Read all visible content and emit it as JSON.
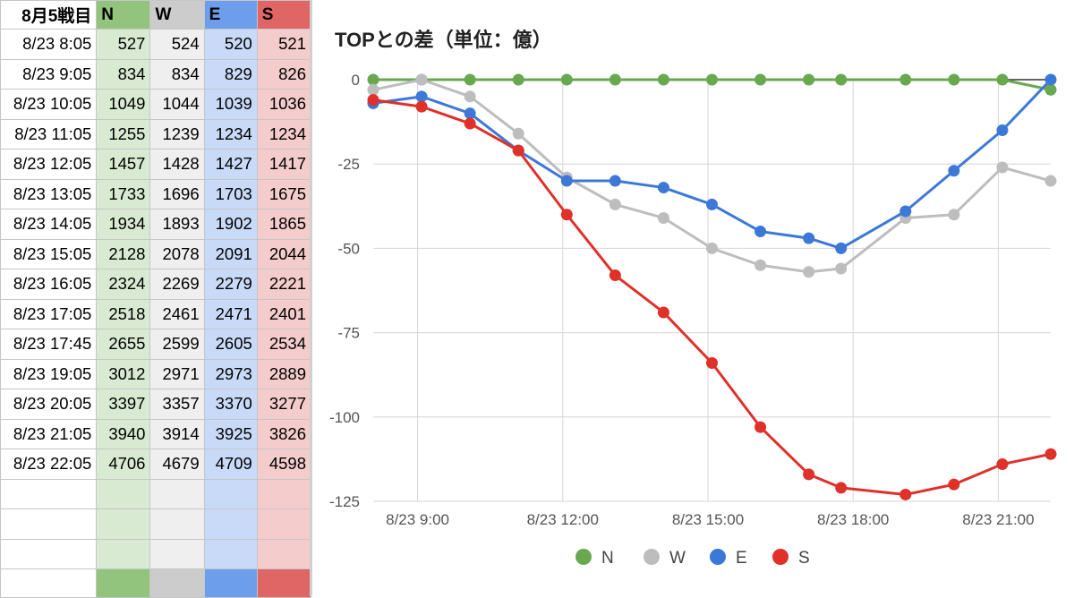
{
  "sheet": {
    "header": [
      "8月5戦目",
      "N",
      "W",
      "E",
      "S"
    ],
    "rows": [
      [
        "8/23 8:05",
        "527",
        "524",
        "520",
        "521"
      ],
      [
        "8/23 9:05",
        "834",
        "834",
        "829",
        "826"
      ],
      [
        "8/23 10:05",
        "1049",
        "1044",
        "1039",
        "1036"
      ],
      [
        "8/23 11:05",
        "1255",
        "1239",
        "1234",
        "1234"
      ],
      [
        "8/23 12:05",
        "1457",
        "1428",
        "1427",
        "1417"
      ],
      [
        "8/23 13:05",
        "1733",
        "1696",
        "1703",
        "1675"
      ],
      [
        "8/23 14:05",
        "1934",
        "1893",
        "1902",
        "1865"
      ],
      [
        "8/23 15:05",
        "2128",
        "2078",
        "2091",
        "2044"
      ],
      [
        "8/23 16:05",
        "2324",
        "2269",
        "2279",
        "2221"
      ],
      [
        "8/23 17:05",
        "2518",
        "2461",
        "2471",
        "2401"
      ],
      [
        "8/23 17:45",
        "2655",
        "2599",
        "2605",
        "2534"
      ],
      [
        "8/23 19:05",
        "3012",
        "2971",
        "2973",
        "2889"
      ],
      [
        "8/23 20:05",
        "3397",
        "3357",
        "3370",
        "3277"
      ],
      [
        "8/23 21:05",
        "3940",
        "3914",
        "3925",
        "3826"
      ],
      [
        "8/23 22:05",
        "4706",
        "4679",
        "4709",
        "4598"
      ]
    ]
  },
  "chart_data": {
    "type": "line",
    "title": "TOPとの差（単位：億）",
    "x": [
      "8/23 8:05",
      "8/23 9:05",
      "8/23 10:05",
      "8/23 11:05",
      "8/23 12:05",
      "8/23 13:05",
      "8/23 14:05",
      "8/23 15:05",
      "8/23 16:05",
      "8/23 17:05",
      "8/23 17:45",
      "8/23 19:05",
      "8/23 20:05",
      "8/23 21:05",
      "8/23 22:05"
    ],
    "series": [
      {
        "name": "N",
        "color": "#6aa84f",
        "values": [
          0,
          0,
          0,
          0,
          0,
          0,
          0,
          0,
          0,
          0,
          0,
          0,
          0,
          0,
          -3
        ]
      },
      {
        "name": "W",
        "color": "#bdbdbd",
        "values": [
          -3,
          0,
          -5,
          -16,
          -29,
          -37,
          -41,
          -50,
          -55,
          -57,
          -56,
          -41,
          -40,
          -26,
          -30
        ]
      },
      {
        "name": "E",
        "color": "#3c78d8",
        "values": [
          -7,
          -5,
          -10,
          -21,
          -30,
          -30,
          -32,
          -37,
          -45,
          -47,
          -50,
          -39,
          -27,
          -15,
          0
        ]
      },
      {
        "name": "S",
        "color": "#e0302a",
        "values": [
          -6,
          -8,
          -13,
          -21,
          -40,
          -58,
          -69,
          -84,
          -103,
          -117,
          -121,
          -123,
          -120,
          -114,
          -111
        ]
      }
    ],
    "xticks": [
      "8/23 9:00",
      "8/23 12:00",
      "8/23 15:00",
      "8/23 18:00",
      "8/23 21:00"
    ],
    "yticks": [
      "0",
      "-25",
      "-50",
      "-75",
      "-100",
      "-125"
    ],
    "ylim": [
      -125,
      0
    ],
    "grid": true,
    "legend": "bottom"
  }
}
